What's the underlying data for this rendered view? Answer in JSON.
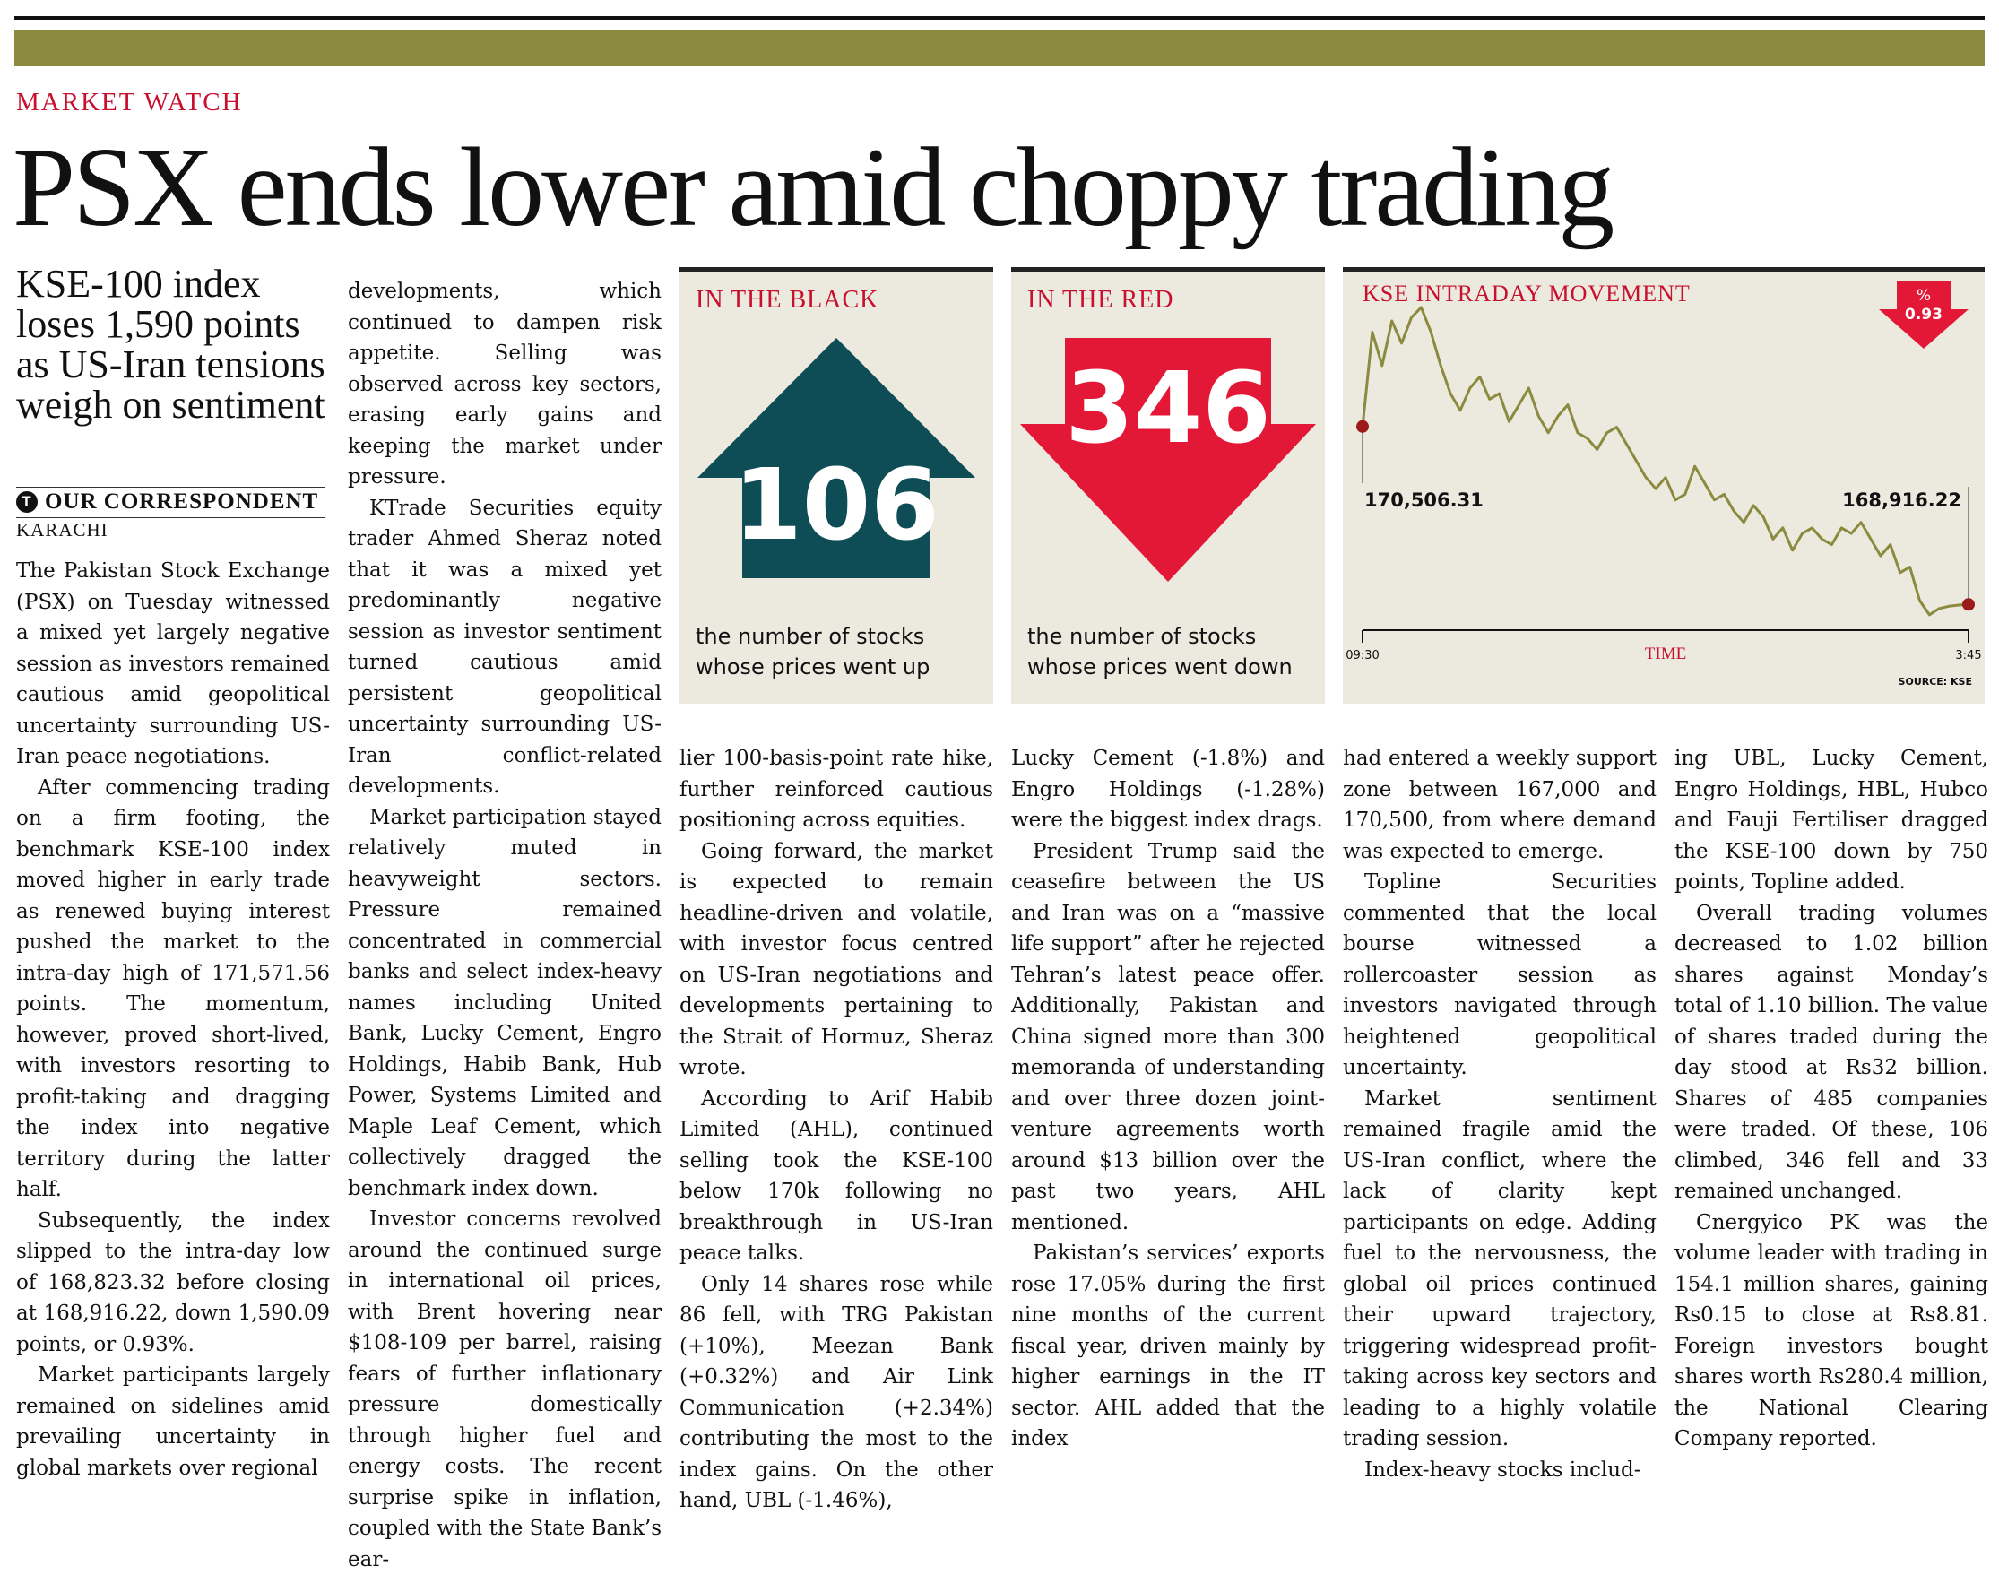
{
  "header": {
    "kicker": "MARKET WATCH",
    "headline": "PSX ends lower amid choppy trading",
    "deck": "KSE-100 index loses 1,590 points as US-Iran tensions weigh on sentiment",
    "byline": "OUR CORRESPONDENT",
    "byline_icon": "tribune-t-icon",
    "dateline": "KARACHI"
  },
  "colors": {
    "band": "#8c8a3e",
    "accent_red": "#c8102e",
    "arrow_up": "#0e4d55",
    "arrow_down": "#e31837",
    "line": "#8c8a3e",
    "panel": "#eceadf"
  },
  "black_box": {
    "title": "IN THE BLACK",
    "number": "106",
    "caption": "the number of stocks whose prices went up",
    "icon": "up-arrow-icon"
  },
  "red_box": {
    "title": "IN THE RED",
    "number": "346",
    "caption": "the number of stocks whose prices went down",
    "icon": "down-arrow-icon"
  },
  "chart_data": {
    "type": "line",
    "title": "KSE INTRADAY MOVEMENT",
    "xlabel": "TIME",
    "x_start_label": "09:30",
    "x_end_label": "3:45",
    "open_label": "170,506.31",
    "close_label": "168,916.22",
    "change_badge_symbol": "%",
    "change_badge_value": "0.93",
    "source": "SOURCE: KSE",
    "grid": false,
    "ylim": [
      168750,
      171650
    ],
    "series": [
      {
        "values": [
          170506,
          171350,
          171050,
          171450,
          171250,
          171480,
          171571,
          171350,
          171050,
          170800,
          170650,
          170850,
          170950,
          170750,
          170800,
          170550,
          170700,
          170850,
          170600,
          170450,
          170600,
          170700,
          170450,
          170400,
          170300,
          170450,
          170500,
          170350,
          170200,
          170050,
          169950,
          170050,
          169850,
          169900,
          170150,
          170000,
          169850,
          169900,
          169750,
          169650,
          169800,
          169700,
          169500,
          169600,
          169400,
          169550,
          169600,
          169500,
          169450,
          169600,
          169550,
          169650,
          169500,
          169350,
          169450,
          169200,
          169250,
          168950,
          168823,
          168880,
          168900,
          168910,
          168916
        ]
      }
    ]
  },
  "columns": [
    [
      {
        "text": "The Pakistan Stock Exchange (PSX) on Tuesday witnessed a mixed yet largely negative session as investors remained cautious amid geopolitical uncertainty surrounding US-Iran peace negotiations.",
        "indent": false
      },
      {
        "text": "After commencing trading on a firm footing, the benchmark KSE-100 index moved higher in early trade as renewed buying interest pushed the market to the intra-day high of 171,571.56 points. The momentum, however, proved short-lived, with investors resorting to profit-taking and dragging the index into negative territory during the latter half.",
        "indent": true
      },
      {
        "text": "Subsequently, the index slipped to the intra-day low of 168,823.32 before closing at 168,916.22, down 1,590.09 points, or 0.93%.",
        "indent": true
      },
      {
        "text": "Market participants largely remained on sidelines amid prevailing uncertainty in global markets over regional",
        "indent": true
      }
    ],
    [
      {
        "text": "developments, which continued to dampen risk appetite. Selling was observed across key sectors, erasing early gains and keeping the market under pressure.",
        "indent": false
      },
      {
        "text": "KTrade Securities equity trader Ahmed Sheraz noted that it was a mixed yet predominantly negative session as investor sentiment turned cautious amid persistent geopolitical uncertainty surrounding US-Iran conflict-related developments.",
        "indent": true
      },
      {
        "text": "Market participation stayed relatively muted in heavyweight sectors. Pressure remained concentrated in commercial banks and select index-heavy names including United Bank, Lucky Cement, Engro Holdings, Habib Bank, Hub Power, Systems Limited and Maple Leaf Cement, which collectively dragged the benchmark index down.",
        "indent": true
      },
      {
        "text": "Investor concerns revolved around the continued surge in international oil prices, with Brent hovering near $108-109 per barrel, raising fears of further inflationary pressure domestically through higher fuel and energy costs. The recent surprise spike in inflation, coupled with the State Bank’s ear-",
        "indent": true
      }
    ],
    [
      {
        "text": "lier 100-basis-point rate hike, further reinforced cautious positioning across equities.",
        "indent": false
      },
      {
        "text": "Going forward, the market is expected to remain headline-driven and volatile, with investor focus centred on US-Iran negotiations and developments pertaining to the Strait of Hormuz, Sheraz wrote.",
        "indent": true
      },
      {
        "text": "According to Arif Habib Limited (AHL), continued selling took the KSE-100 below 170k following no breakthrough in US-Iran peace talks.",
        "indent": true
      },
      {
        "text": "Only 14 shares rose while 86 fell, with TRG Pakistan (+10%), Meezan Bank (+0.32%) and Air Link Communication (+2.34%) contributing the most to the index gains. On the other hand, UBL (-1.46%),",
        "indent": true
      }
    ],
    [
      {
        "text": "Lucky Cement (-1.8%) and Engro Holdings (-1.28%) were the biggest index drags.",
        "indent": false
      },
      {
        "text": "President Trump said the ceasefire between the US and Iran was on a “massive life support” after he rejected Tehran’s latest peace offer. Additionally, Pakistan and China signed more than 300 memoranda of understanding and over three dozen joint-venture agreements worth around $13 billion over the past two years, AHL mentioned.",
        "indent": true
      },
      {
        "text": "Pakistan’s services’ exports rose 17.05% during the first nine months of the current fiscal year, driven mainly by higher earnings in the IT sector. AHL added that the index",
        "indent": true
      }
    ],
    [
      {
        "text": "had entered a weekly support zone between 167,000 and 170,500, from where demand was expected to emerge.",
        "indent": false
      },
      {
        "text": "Topline Securities commented that the local bourse witnessed a rollercoaster session as investors navigated through heightened geopolitical uncertainty.",
        "indent": true
      },
      {
        "text": "Market sentiment remained fragile amid the US-Iran conflict, where the lack of clarity kept participants on edge. Adding fuel to the nervousness, the global oil prices continued their upward trajectory, triggering widespread profit-taking across key sectors and leading to a highly volatile trading session.",
        "indent": true
      },
      {
        "text": "Index-heavy stocks includ-",
        "indent": true
      }
    ],
    [
      {
        "text": "ing UBL, Lucky Cement, Engro Holdings, HBL, Hubco and Fauji Fertiliser dragged the KSE-100 down by 750 points, Topline added.",
        "indent": false
      },
      {
        "text": "Overall trading volumes decreased to 1.02 billion shares against Monday’s total of 1.10 billion. The value of shares traded during the day stood at Rs32 billion. Shares of 485 companies were traded. Of these, 106 climbed, 346 fell and 33 remained unchanged.",
        "indent": true
      },
      {
        "text": "Cnergyico PK was the volume leader with trading in 154.1 million shares, gaining Rs0.15 to close at Rs8.81. Foreign investors bought shares worth Rs280.4 million, the National Clearing Company reported.",
        "indent": true
      }
    ]
  ]
}
